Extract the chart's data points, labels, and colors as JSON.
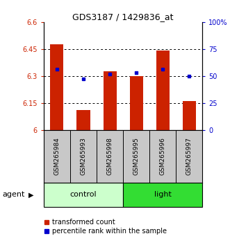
{
  "title": "GDS3187 / 1429836_at",
  "samples": [
    "GSM265984",
    "GSM265993",
    "GSM265998",
    "GSM265995",
    "GSM265996",
    "GSM265997"
  ],
  "bar_values": [
    6.475,
    6.11,
    6.325,
    6.3,
    6.44,
    6.16
  ],
  "blue_dot_values": [
    56,
    47,
    52,
    53,
    56,
    50
  ],
  "ylim_left": [
    6.0,
    6.6
  ],
  "ylim_right": [
    0,
    100
  ],
  "yticks_left": [
    6.0,
    6.15,
    6.3,
    6.45,
    6.6
  ],
  "yticks_left_labels": [
    "6",
    "6.15",
    "6.3",
    "6.45",
    "6.6"
  ],
  "yticks_right": [
    0,
    25,
    50,
    75,
    100
  ],
  "yticks_right_labels": [
    "0",
    "25",
    "50",
    "75",
    "100%"
  ],
  "bar_color": "#cc2200",
  "dot_color": "#0000cc",
  "bar_width": 0.5,
  "xlabel_bg_color": "#c8c8c8",
  "left_axis_color": "#cc2200",
  "right_axis_color": "#0000cc",
  "control_color": "#ccffcc",
  "light_color": "#33dd33",
  "agent_label": "agent"
}
